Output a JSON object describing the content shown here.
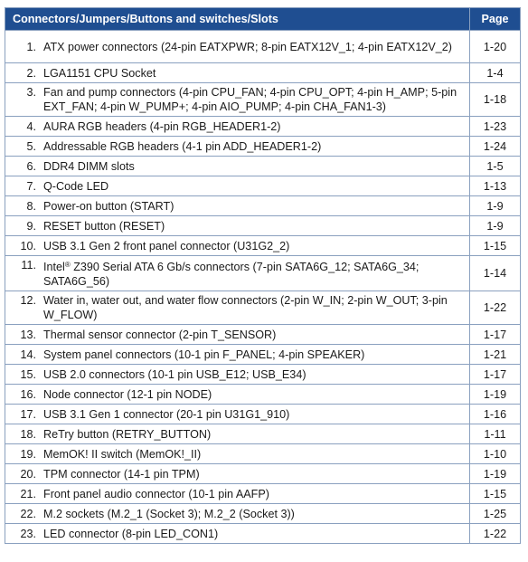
{
  "header": {
    "title": "Connectors/Jumpers/Buttons and switches/Slots",
    "page_label": "Page"
  },
  "rows": [
    {
      "num": "1.",
      "text": "ATX power connectors (24-pin EATXPWR; 8-pin EATX12V_1; 4-pin EATX12V_2)",
      "page": "1-20"
    },
    {
      "num": "2.",
      "text": "LGA1151 CPU Socket",
      "page": "1-4"
    },
    {
      "num": "3.",
      "text": "Fan and pump connectors (4-pin CPU_FAN; 4-pin CPU_OPT; 4-pin H_AMP; 5-pin EXT_FAN; 4-pin W_PUMP+; 4-pin AIO_PUMP; 4-pin CHA_FAN1-3)",
      "page": "1-18"
    },
    {
      "num": "4.",
      "text": "AURA RGB headers (4-pin RGB_HEADER1-2)",
      "page": "1-23"
    },
    {
      "num": "5.",
      "text": "Addressable RGB headers (4-1 pin ADD_HEADER1-2)",
      "page": "1-24"
    },
    {
      "num": "6.",
      "text": "DDR4 DIMM slots",
      "page": "1-5"
    },
    {
      "num": "7.",
      "text": "Q-Code LED",
      "page": "1-13"
    },
    {
      "num": "8.",
      "text": "Power-on button (START)",
      "page": "1-9"
    },
    {
      "num": "9.",
      "text": "RESET button (RESET)",
      "page": "1-9"
    },
    {
      "num": "10.",
      "text": "USB 3.1 Gen 2 front panel connector (U31G2_2)",
      "page": "1-15"
    },
    {
      "num": "11.",
      "text_pre": "Intel",
      "text_sup": "®",
      "text_post": " Z390 Serial ATA 6 Gb/s connectors (7-pin SATA6G_12; SATA6G_34; SATA6G_56)",
      "page": "1-14"
    },
    {
      "num": "12.",
      "text": "Water in, water out, and water flow connectors (2-pin W_IN; 2-pin W_OUT; 3-pin W_FLOW)",
      "page": "1-22"
    },
    {
      "num": "13.",
      "text": "Thermal sensor connector (2-pin T_SENSOR)",
      "page": "1-17"
    },
    {
      "num": "14.",
      "text": "System panel connectors (10-1 pin F_PANEL; 4-pin SPEAKER)",
      "page": "1-21"
    },
    {
      "num": "15.",
      "text": "USB 2.0 connectors (10-1 pin USB_E12; USB_E34)",
      "page": "1-17"
    },
    {
      "num": "16.",
      "text": "Node connector (12-1 pin NODE)",
      "page": "1-19"
    },
    {
      "num": "17.",
      "text": "USB 3.1 Gen 1 connector (20-1 pin U31G1_910)",
      "page": "1-16"
    },
    {
      "num": "18.",
      "text": "ReTry button (RETRY_BUTTON)",
      "page": "1-11"
    },
    {
      "num": "19.",
      "text": "MemOK! II switch (MemOK!_II)",
      "page": "1-10"
    },
    {
      "num": "20.",
      "text": "TPM connector (14-1 pin TPM)",
      "page": "1-19"
    },
    {
      "num": "21.",
      "text": "Front panel audio connector (10-1 pin AAFP)",
      "page": "1-15"
    },
    {
      "num": "22.",
      "text": "M.2 sockets (M.2_1 (Socket 3); M.2_2 (Socket 3))",
      "page": "1-25"
    },
    {
      "num": "23.",
      "text": "LED connector (8-pin LED_CON1)",
      "page": "1-22"
    }
  ]
}
